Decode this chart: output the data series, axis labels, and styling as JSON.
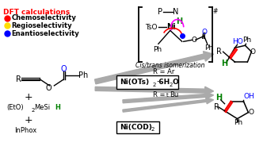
{
  "bg_color": "#ffffff",
  "title": "DFT calculations",
  "title_color": "#ff0000",
  "legend": [
    {
      "color": "#ff0000",
      "label": "Chemoselectivity"
    },
    {
      "color": "#ffdd00",
      "label": "Regioselectivity"
    },
    {
      "color": "#0000ff",
      "label": "Enantioselectivity"
    }
  ],
  "figsize": [
    3.37,
    1.89
  ],
  "dpi": 100
}
